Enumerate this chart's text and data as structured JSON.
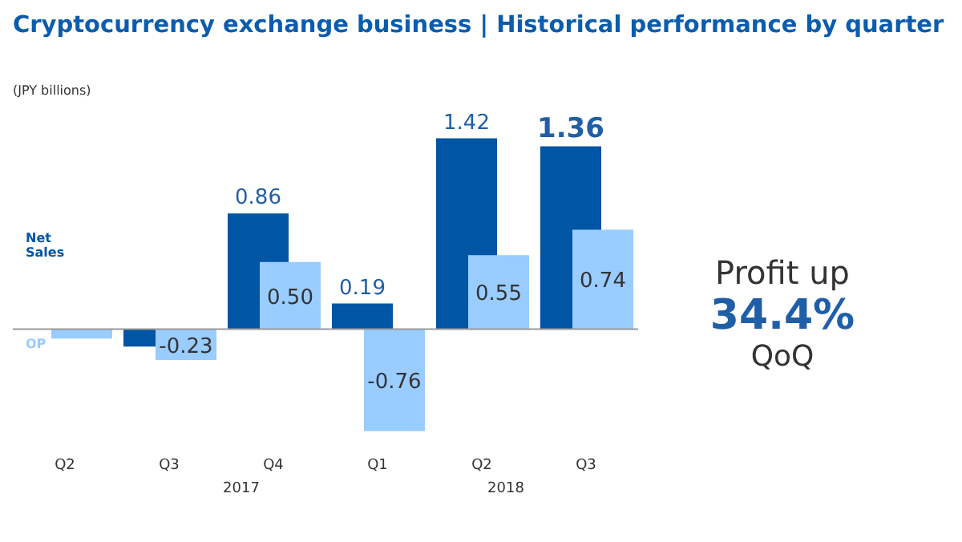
{
  "chart_data": {
    "type": "bar",
    "title": "Cryptocurrency exchange business | Historical performance by quarter",
    "ylabel": "(JPY billions)",
    "categories": [
      "Q2",
      "Q3",
      "Q4",
      "Q1",
      "Q2",
      "Q3"
    ],
    "series": [
      {
        "name": "Net Sales",
        "color": "#0055a5",
        "values": [
          null,
          -0.13,
          0.86,
          0.19,
          1.42,
          1.36
        ],
        "value_labels": [
          null,
          null,
          "0.86",
          "0.19",
          "1.42",
          "1.36"
        ]
      },
      {
        "name": "OP",
        "color": "#99ccff",
        "values": [
          -0.07,
          -0.23,
          0.5,
          -0.76,
          0.55,
          0.74
        ],
        "value_labels": [
          null,
          "-0.23",
          "0.50",
          "-0.76",
          "0.55",
          "0.74"
        ]
      }
    ],
    "annotations": [
      "2017",
      "2018",
      "Profit up",
      "34.4%",
      "QoQ"
    ],
    "legend": "left"
  }
}
